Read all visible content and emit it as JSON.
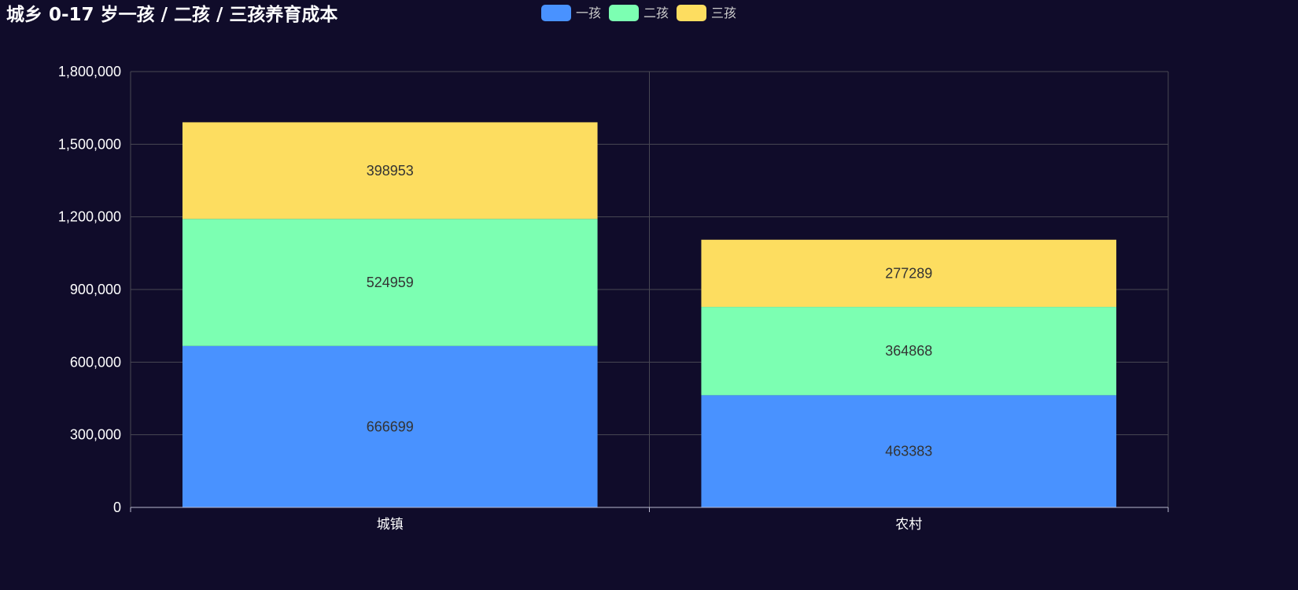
{
  "chart_data": {
    "type": "bar",
    "stacked": true,
    "title": "城乡 0-17 岁一孩 / 二孩 / 三孩养育成本",
    "categories": [
      "城镇",
      "农村"
    ],
    "series": [
      {
        "name": "一孩",
        "color": "#4992ff",
        "values": [
          666699,
          463383
        ]
      },
      {
        "name": "二孩",
        "color": "#7cffb2",
        "values": [
          524959,
          364868
        ]
      },
      {
        "name": "三孩",
        "color": "#fddd60",
        "values": [
          398953,
          277289
        ]
      }
    ],
    "ylim": [
      0,
      1800000
    ],
    "yticks": [
      "0",
      "300,000",
      "600,000",
      "900,000",
      "1,200,000",
      "1,500,000",
      "1,800,000"
    ],
    "grid": true,
    "legend_position": "top-center",
    "xlabel": "",
    "ylabel": ""
  },
  "colors": {
    "background": "#100c2a",
    "grid": "#484753",
    "axis": "#b9b8ce",
    "label": "#333333"
  }
}
